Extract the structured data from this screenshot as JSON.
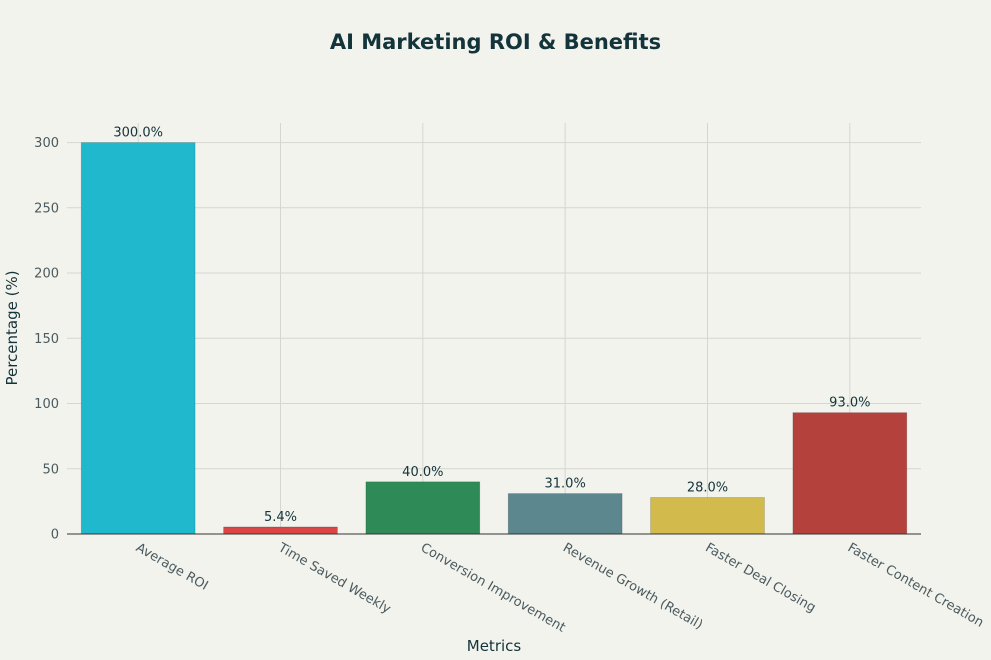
{
  "chart_data": {
    "type": "bar",
    "title": "AI Marketing ROI & Benefits",
    "xlabel": "Metrics",
    "ylabel": "Percentage (%)",
    "ylim": [
      0,
      315
    ],
    "yticks": [
      0,
      50,
      100,
      150,
      200,
      250,
      300
    ],
    "grid": true,
    "categories": [
      "Average ROI",
      "Time Saved Weekly",
      "Conversion Improvement",
      "Revenue Growth (Retail)",
      "Faster Deal Closing",
      "Faster Content Creation"
    ],
    "values": [
      300.0,
      5.4,
      40.0,
      31.0,
      28.0,
      93.0
    ],
    "data_labels": [
      "300.0%",
      "5.4%",
      "40.0%",
      "31.0%",
      "28.0%",
      "93.0%"
    ],
    "colors": [
      "#1fb8cd",
      "#db4545",
      "#2e8b57",
      "#5d878f",
      "#d2ba4c",
      "#b4413c"
    ]
  }
}
